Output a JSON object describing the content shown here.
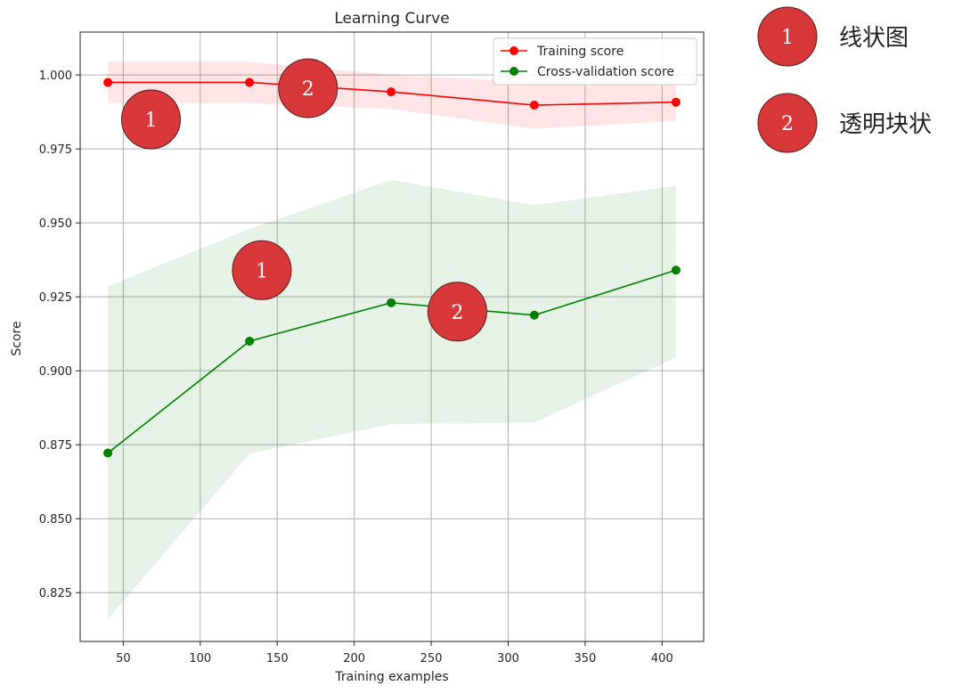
{
  "chart_data": {
    "type": "line",
    "title": "Learning Curve",
    "xlabel": "Training examples",
    "ylabel": "Score",
    "xlim": [
      22,
      427
    ],
    "ylim": [
      0.8085,
      1.0145
    ],
    "xticks": [
      50,
      100,
      150,
      200,
      250,
      300,
      350,
      400
    ],
    "yticks": [
      0.825,
      0.85,
      0.875,
      0.9,
      0.925,
      0.95,
      0.975,
      1.0
    ],
    "ytick_labels": [
      "0.825",
      "0.850",
      "0.875",
      "0.900",
      "0.925",
      "0.950",
      "0.975",
      "1.000"
    ],
    "grid": true,
    "legend_position": "top-right",
    "x": [
      40,
      132,
      224,
      317,
      409
    ],
    "series": [
      {
        "name": "Training score",
        "color": "#ff0000",
        "band_color": "#ff0000",
        "values": [
          0.9975,
          0.9975,
          0.9943,
          0.9898,
          0.9908
        ],
        "band_upper": [
          1.0045,
          1.0045,
          1.0,
          0.9978,
          0.9972
        ],
        "band_lower": [
          0.9905,
          0.9905,
          0.9885,
          0.9818,
          0.9845
        ]
      },
      {
        "name": "Cross-validation score",
        "color": "#008000",
        "band_color": "#008000",
        "values": [
          0.8722,
          0.91,
          0.923,
          0.9188,
          0.934
        ],
        "band_upper": [
          0.9285,
          0.948,
          0.9645,
          0.956,
          0.9625
        ],
        "band_lower": [
          0.816,
          0.872,
          0.882,
          0.8825,
          0.9045
        ]
      }
    ]
  },
  "annotations": {
    "badge_color": "#d9383a",
    "badges": [
      {
        "number": "1",
        "x": 68,
        "y": 0.985
      },
      {
        "number": "2",
        "x": 170,
        "y": 0.9955
      },
      {
        "number": "1",
        "x": 140,
        "y": 0.934
      },
      {
        "number": "2",
        "x": 267,
        "y": 0.92
      }
    ]
  },
  "key": [
    {
      "number": "1",
      "label": "线状图"
    },
    {
      "number": "2",
      "label": "透明块状"
    }
  ]
}
